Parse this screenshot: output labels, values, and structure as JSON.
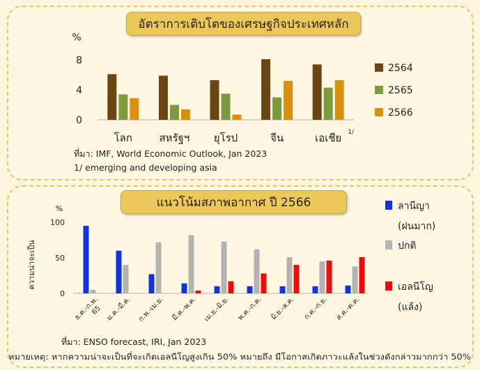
{
  "chart_data": [
    {
      "type": "bar",
      "title": "อัตราการเติบโตของเศรษฐกิจประเทศหลัก",
      "ylabel": "%",
      "ylim": [
        0,
        8
      ],
      "yticks": [
        0,
        4,
        8
      ],
      "categories": [
        "โลก",
        "สหรัฐฯ",
        "ยุโรป",
        "จีน",
        "เอเชีย"
      ],
      "category_superscript": {
        "index": 4,
        "text": "1/"
      },
      "series": [
        {
          "name": "2564",
          "color": "#6b4512",
          "values": [
            6.1,
            5.9,
            5.3,
            8.1,
            7.4
          ]
        },
        {
          "name": "2565",
          "color": "#7e9a3e",
          "values": [
            3.4,
            2.0,
            3.5,
            3.0,
            4.3
          ]
        },
        {
          "name": "2566",
          "color": "#d9900f",
          "values": [
            2.9,
            1.4,
            0.7,
            5.2,
            5.3
          ]
        }
      ],
      "legend": "right",
      "source": "ที่มา: IMF, World Economic Outlook, Jan 2023",
      "note": "1/ emerging and developing asia"
    },
    {
      "type": "bar",
      "title": "แนวโน้มสภาพอากาศ ปี 2566",
      "ylabel": "ความน่าจะเป็น",
      "yunit": "%",
      "ylim": [
        0,
        100
      ],
      "yticks": [
        0,
        50,
        100
      ],
      "categories": [
        "ธ.ค.-ก.พ. 65",
        "ม.ค.-มี.ค.",
        "ก.พ.-เม.ย.",
        "มี.ค.-พ.ค.",
        "เม.ย.-มิ.ย.",
        "พ.ค.-ก.ค.",
        "มิ.ย.-ส.ค.",
        "ก.ค.-ก.ย.",
        "ส.ค.-ต.ค."
      ],
      "series": [
        {
          "name": "ลานีญา (ฝนมาก)",
          "color": "#1034d8",
          "values": [
            95,
            60,
            27,
            14,
            10,
            10,
            10,
            10,
            11
          ]
        },
        {
          "name": "ปกติ",
          "color": "#b4b4b4",
          "values": [
            5,
            40,
            72,
            82,
            73,
            62,
            51,
            45,
            38
          ]
        },
        {
          "name": "เอลนีโญ (แล้ง)",
          "color": "#f20a0a",
          "values": [
            0,
            0,
            0,
            4,
            17,
            28,
            40,
            46,
            51
          ]
        }
      ],
      "legend": "right",
      "source": "ที่มา: ENSO forecast, IRI, Jan 2023"
    }
  ],
  "footer_note": "หมายเหตุ: หากความน่าจะเป็นที่จะเกิดเอลนีโญสูงเกิน 50% หมายถึง มีโอกาสเกิดภาวะแล้งในช่วงดังกล่าวมากกว่า 50%"
}
